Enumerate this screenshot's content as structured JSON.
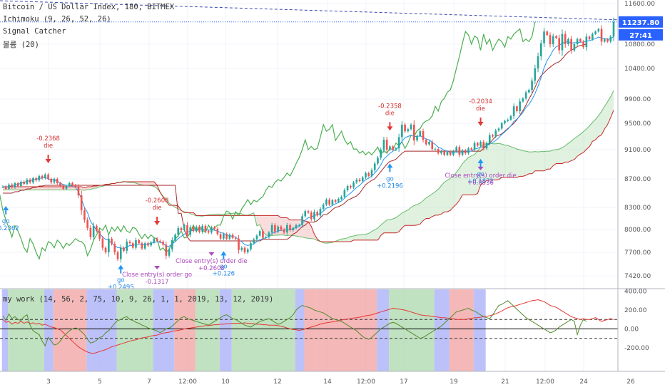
{
  "legend": {
    "main_title": "Bitcoin / US Dollar Index, 180, BITMEX",
    "ichimoku": "Ichimoku (9, 26, 52, 26)",
    "signal": "Signal Catcher",
    "indicator3": "볼륨 (20)",
    "sub_title": "my work (14, 56, 2, 75, 10, 9, 26, 1, 1, 2019, 13, 12, 2019)"
  },
  "price_badges": {
    "last_price": "11237.80",
    "countdown": "27:41"
  },
  "colors": {
    "up": "#26a69a",
    "down": "#ef5350",
    "tenkan": "#2196f3",
    "kijun": "#a52a2a",
    "chikou": "#4caf50",
    "cloud_bull": "#a5d6a7",
    "cloud_bear": "#ef9a9a",
    "bg_green": "#a5d6a7",
    "bg_red": "#ef9a9a",
    "bg_blue": "#9fa8f7",
    "osc_red": "#e53935",
    "osc_green": "#558b2f",
    "arrow_up": "#2196f3",
    "arrow_down": "#e53935",
    "exit": "#ab47bc",
    "badge": "#2962ff"
  },
  "chart_data": {
    "type": "candlestick",
    "title": "Bitcoin / US Dollar Index, 180, BITMEX",
    "x_tick_labels": [
      "3",
      "5",
      "7",
      "12:00",
      "10",
      "12",
      "14",
      "12:00",
      "17",
      "19",
      "21",
      "12:00",
      "24",
      "26"
    ],
    "y_tick_labels": [
      "11600.00",
      "10800.00",
      "10400.00",
      "9900.00",
      "9500.00",
      "9100.00",
      "8700.00",
      "8300.00",
      "8000.00",
      "7700.00",
      "7420.00"
    ],
    "ylim": [
      7300,
      11700
    ],
    "last_price": 11237.8,
    "closes": [
      8590,
      8560,
      8620,
      8580,
      8640,
      8600,
      8660,
      8630,
      8690,
      8650,
      8710,
      8680,
      8740,
      8710,
      8760,
      8700,
      8650,
      8700,
      8640,
      8600,
      8560,
      8600,
      8640,
      8610,
      8590,
      8470,
      8260,
      8130,
      8020,
      7900,
      8050,
      7980,
      7880,
      7760,
      7700,
      7880,
      7810,
      7700,
      7620,
      7760,
      7720,
      7840,
      7820,
      7760,
      7860,
      7820,
      7750,
      7820,
      7790,
      7830,
      7880,
      7850,
      7840,
      7800,
      7660,
      7740,
      7860,
      7930,
      8020,
      7990,
      8060,
      7930,
      8030,
      7980,
      8040,
      7970,
      8050,
      7980,
      7960,
      8030,
      8010,
      7940,
      7880,
      7940,
      7880,
      7930,
      7890,
      7880,
      7730,
      7760,
      7700,
      7740,
      7820,
      7870,
      7920,
      7980,
      7890,
      7900,
      7960,
      8060,
      7970,
      8040,
      8000,
      7960,
      8060,
      7990,
      8020,
      8060,
      8060,
      8180,
      8250,
      8230,
      8140,
      8240,
      8190,
      8280,
      8340,
      8410,
      8340,
      8400,
      8380,
      8420,
      8450,
      8540,
      8600,
      8580,
      8650,
      8690,
      8670,
      8720,
      8780,
      8740,
      8820,
      8910,
      8990,
      9100,
      9250,
      9100,
      9150,
      9100,
      9120,
      9290,
      9480,
      9380,
      9410,
      9480,
      9240,
      9310,
      9380,
      9250,
      9180,
      9220,
      9110,
      9110,
      9050,
      9080,
      9030,
      9070,
      9030,
      9080,
      9140,
      9030,
      9090,
      9050,
      9120,
      9100,
      9200,
      9160,
      9220,
      9120,
      9200,
      9320,
      9300,
      9390,
      9420,
      9500,
      9540,
      9560,
      9620,
      9780,
      9700,
      9860,
      9910,
      10010,
      10050,
      10200,
      10400,
      10600,
      10820,
      11050,
      10980,
      10800,
      10960,
      10920,
      10700,
      11000,
      10800,
      10900,
      10700,
      10800,
      10900,
      10850,
      10750,
      10950,
      10900,
      11000,
      11050,
      11100,
      10850,
      10900,
      10850,
      10950,
      11237.8
    ],
    "tenkan": [
      8590,
      8580,
      8600,
      8600,
      8620,
      8620,
      8640,
      8650,
      8670,
      8670,
      8690,
      8690,
      8710,
      8710,
      8720,
      8700,
      8690,
      8690,
      8670,
      8640,
      8620,
      8610,
      8610,
      8600,
      8580,
      8520,
      8420,
      8300,
      8230,
      8110,
      8050,
      7990,
      7950,
      7900,
      7870,
      7860,
      7820,
      7790,
      7760,
      7760,
      7750,
      7770,
      7790,
      7790,
      7800,
      7810,
      7800,
      7800,
      7810,
      7820,
      7830,
      7840,
      7830,
      7820,
      7780,
      7780,
      7810,
      7840,
      7880,
      7910,
      7940,
      7960,
      7980,
      7990,
      8000,
      8000,
      8010,
      8000,
      7990,
      8000,
      7990,
      7980,
      7960,
      7950,
      7930,
      7920,
      7910,
      7900,
      7860,
      7840,
      7800,
      7790,
      7800,
      7810,
      7840,
      7870,
      7880,
      7890,
      7910,
      7950,
      7960,
      7980,
      7990,
      7990,
      8000,
      8000,
      8010,
      8030,
      8040,
      8080,
      8130,
      8160,
      8170,
      8190,
      8200,
      8220,
      8250,
      8290,
      8300,
      8330,
      8350,
      8370,
      8390,
      8430,
      8470,
      8500,
      8540,
      8580,
      8610,
      8650,
      8690,
      8710,
      8740,
      8780,
      8830,
      8890,
      8970,
      9010,
      9050,
      9080,
      9100,
      9150,
      9230,
      9280,
      9300,
      9320,
      9300,
      9300,
      9310,
      9290,
      9260,
      9250,
      9210,
      9180,
      9140,
      9120,
      9090,
      9080,
      9060,
      9060,
      9070,
      9060,
      9070,
      9070,
      9080,
      9080,
      9110,
      9120,
      9140,
      9140,
      9160,
      9190,
      9210,
      9240,
      9280,
      9330,
      9370,
      9410,
      9460,
      9530,
      9570,
      9620,
      9680,
      9760,
      9810,
      9890,
      9990,
      10110,
      10250,
      10410,
      10530,
      10610,
      10700,
      10760,
      10780,
      10820,
      10840,
      10850,
      10820,
      10830,
      10830,
      10840,
      10840,
      10860,
      10870,
      10890,
      10910,
      10940,
      10920,
      10910,
      10900,
      10900,
      10950
    ],
    "kijun": [
      8500,
      8500,
      8500,
      8500,
      8520,
      8520,
      8540,
      8540,
      8560,
      8560,
      8580,
      8580,
      8600,
      8600,
      8610,
      8610,
      8610,
      8610,
      8610,
      8610,
      8610,
      8610,
      8610,
      8610,
      8610,
      8610,
      8610,
      8610,
      8610,
      8610,
      8610,
      8610,
      8610,
      8610,
      8610,
      8610,
      8610,
      8610,
      8610,
      8610,
      8610,
      8610,
      8610,
      8610,
      8610,
      8610,
      8610,
      8610,
      8610,
      8610,
      8610,
      8610,
      8610,
      8610,
      8610,
      8610,
      8610,
      8610,
      8220,
      8220,
      8000,
      7900,
      7850,
      7850,
      7850,
      7850,
      7850,
      7850,
      7850,
      7850,
      7850,
      7850,
      7850,
      7850,
      7850,
      7850,
      7850,
      7850,
      7850,
      7850,
      7850,
      7850,
      7850,
      7850,
      7850,
      7850,
      7870,
      7870,
      7870,
      7870,
      7870,
      7870,
      7870,
      7870,
      7870,
      7900,
      7940,
      7960,
      8000,
      8040,
      8060,
      8100,
      8100,
      8100,
      8120,
      8160,
      8200,
      8200,
      8230,
      8270,
      8300,
      8310,
      8330,
      8360,
      8400,
      8420,
      8440,
      8460,
      8500,
      8560,
      8620,
      8650,
      8680,
      8700,
      8750,
      8800,
      8850,
      8900,
      8940,
      8950,
      8970,
      9010,
      9050,
      9080,
      9080,
      9080,
      9080,
      9080,
      9080,
      9080,
      9080,
      9080,
      9080,
      9080,
      9080,
      9080,
      9080,
      9080,
      9080,
      9080,
      9080,
      9080,
      9080,
      9080,
      9080,
      9080,
      9080,
      9080,
      9080,
      9120,
      9160,
      9200,
      9250,
      9300,
      9320,
      9340,
      9380,
      9420,
      9460,
      9500,
      9560,
      9630,
      9710,
      9800,
      9900,
      9990,
      10090,
      10200,
      10280,
      10330,
      10380,
      10420,
      10460,
      10490,
      10510,
      10560,
      10620,
      10670,
      10700,
      10730,
      10760,
      10780,
      10790,
      10800
    ]
  },
  "oscillator": {
    "y_tick_labels": [
      "400.00",
      "200.00",
      "0.00",
      "-200.00"
    ],
    "ylim": [
      -450,
      420
    ],
    "red": [
      100,
      70,
      80,
      50,
      70,
      60,
      80,
      60,
      75,
      55,
      65,
      50,
      60,
      40,
      50,
      35,
      20,
      15,
      0,
      -10,
      -40,
      -70,
      -100,
      -130,
      -160,
      -190,
      -210,
      -230,
      -245,
      -255,
      -260,
      -250,
      -240,
      -230,
      -220,
      -205,
      -190,
      -180,
      -170,
      -160,
      -150,
      -140,
      -130,
      -120,
      -115,
      -105,
      -95,
      -90,
      -85,
      -75,
      -65,
      -55,
      -45,
      -40,
      -35,
      -25,
      -20,
      -15,
      -10,
      0,
      5,
      10,
      15,
      20,
      25,
      30,
      35,
      35,
      40,
      45,
      45,
      50,
      50,
      55,
      55,
      60,
      60,
      60,
      60,
      65,
      60,
      60,
      55,
      50,
      50,
      45,
      45,
      40,
      40,
      40,
      35,
      30,
      20,
      10,
      0,
      -5,
      -10,
      -15,
      -10,
      0,
      10,
      20,
      30,
      40,
      50,
      60,
      65,
      70,
      75,
      80,
      85,
      95,
      100,
      105,
      110,
      115,
      120,
      125,
      130,
      140,
      145,
      150,
      160,
      170,
      180,
      190,
      200,
      210,
      220,
      215,
      210,
      205,
      200,
      190,
      180,
      170,
      160,
      150,
      145,
      140,
      140,
      130,
      130,
      125,
      120,
      120,
      115,
      110,
      110,
      100,
      100,
      100,
      110,
      110,
      120,
      120,
      125,
      130,
      135,
      140,
      150,
      160,
      175,
      190,
      210,
      225,
      235,
      240,
      250,
      260,
      270,
      280,
      290,
      300,
      305,
      310,
      300,
      290,
      270,
      250,
      240,
      230,
      210,
      190,
      170,
      150,
      130,
      120,
      110,
      100,
      110,
      100,
      100,
      110,
      120,
      100,
      80,
      90,
      100,
      110,
      100
    ],
    "green": [
      140,
      90,
      160,
      110,
      130,
      100,
      90,
      130,
      150,
      40,
      -20,
      -40,
      -60,
      -130,
      -180,
      -90,
      -130,
      -170,
      -160,
      -130,
      -80,
      -50,
      -20,
      0,
      10,
      0,
      -30,
      -60,
      -110,
      -150,
      -140,
      -120,
      -90,
      -80,
      -40,
      -20,
      20,
      60,
      90,
      100,
      120,
      130,
      100,
      90,
      70,
      60,
      40,
      30,
      10,
      0,
      -20,
      -40,
      -20,
      0,
      10,
      30,
      60,
      90,
      120,
      130,
      110,
      100,
      90,
      80,
      70,
      60,
      50,
      40,
      60,
      80,
      100,
      120,
      140,
      150,
      130,
      110,
      100,
      80,
      60,
      40,
      30,
      20,
      40,
      60,
      80,
      90,
      100,
      110,
      90,
      70,
      50,
      60,
      80,
      100,
      120,
      150,
      200,
      230,
      250,
      240,
      230,
      220,
      200,
      190,
      180,
      170,
      150,
      130,
      110,
      100,
      90,
      80,
      60,
      40,
      20,
      0,
      -20,
      -50,
      -80,
      -100,
      -110,
      -90,
      -60,
      -30,
      0,
      20,
      40,
      60,
      70,
      60,
      40,
      20,
      0,
      -20,
      -40,
      -60,
      -80,
      -100,
      -90,
      -70,
      -50,
      -30,
      -10,
      10,
      30,
      60,
      90,
      120,
      150,
      180,
      200,
      210,
      220,
      200,
      190,
      170,
      150,
      130,
      120,
      110,
      150,
      200,
      250,
      260,
      280,
      300,
      270,
      240,
      210,
      180,
      150,
      120,
      100,
      80,
      60,
      40,
      20,
      0,
      -20,
      -40,
      -30,
      -10,
      20,
      40,
      60,
      80,
      100,
      80,
      -60,
      40,
      100,
      80
    ]
  },
  "signals": [
    {
      "type": "go",
      "idx": 1,
      "label": "go",
      "value": "+0.2362"
    },
    {
      "type": "die",
      "idx": 15,
      "label": "die",
      "value": "-0.2368"
    },
    {
      "type": "go",
      "idx": 39,
      "label": "go",
      "value": "+0.2495"
    },
    {
      "type": "die",
      "idx": 51,
      "label": "die",
      "value": "-0.2608"
    },
    {
      "type": "exit",
      "idx": 51,
      "label": "Close entry(s) order go",
      "value": "-0.1317"
    },
    {
      "type": "exit",
      "idx": 69,
      "label": "Close entry(s) order die",
      "value": "+0.2608"
    },
    {
      "type": "go",
      "idx": 73,
      "label": "go",
      "value": "+0.126"
    },
    {
      "type": "die",
      "idx": 128,
      "label": "die",
      "value": "-0.2358"
    },
    {
      "type": "go",
      "idx": 128,
      "label": "go",
      "value": "+0.2196"
    },
    {
      "type": "die",
      "idx": 158,
      "label": "die",
      "value": "-0.2034"
    },
    {
      "type": "go",
      "idx": 158,
      "label": "go",
      "value": "+0.1872"
    },
    {
      "type": "exit",
      "idx": 158,
      "label": "Close entry(s) order die",
      "value": "+0.0936"
    }
  ],
  "background_bands": [
    {
      "from": 0,
      "to": 2,
      "color": "blue"
    },
    {
      "from": 2,
      "to": 14,
      "color": "green"
    },
    {
      "from": 14,
      "to": 17,
      "color": "blue"
    },
    {
      "from": 17,
      "to": 28,
      "color": "red"
    },
    {
      "from": 28,
      "to": 38,
      "color": "blue"
    },
    {
      "from": 38,
      "to": 50,
      "color": "green"
    },
    {
      "from": 50,
      "to": 57,
      "color": "blue"
    },
    {
      "from": 57,
      "to": 64,
      "color": "red"
    },
    {
      "from": 64,
      "to": 72,
      "color": "green"
    },
    {
      "from": 72,
      "to": 76,
      "color": "blue"
    },
    {
      "from": 76,
      "to": 97,
      "color": "green"
    },
    {
      "from": 97,
      "to": 100,
      "color": "blue"
    },
    {
      "from": 100,
      "to": 104,
      "color": "red"
    },
    {
      "from": 104,
      "to": 124,
      "color": "red"
    },
    {
      "from": 124,
      "to": 128,
      "color": "blue"
    },
    {
      "from": 128,
      "to": 143,
      "color": "green"
    },
    {
      "from": 143,
      "to": 148,
      "color": "blue"
    },
    {
      "from": 148,
      "to": 156,
      "color": "red"
    },
    {
      "from": 156,
      "to": 160,
      "color": "blue"
    }
  ]
}
